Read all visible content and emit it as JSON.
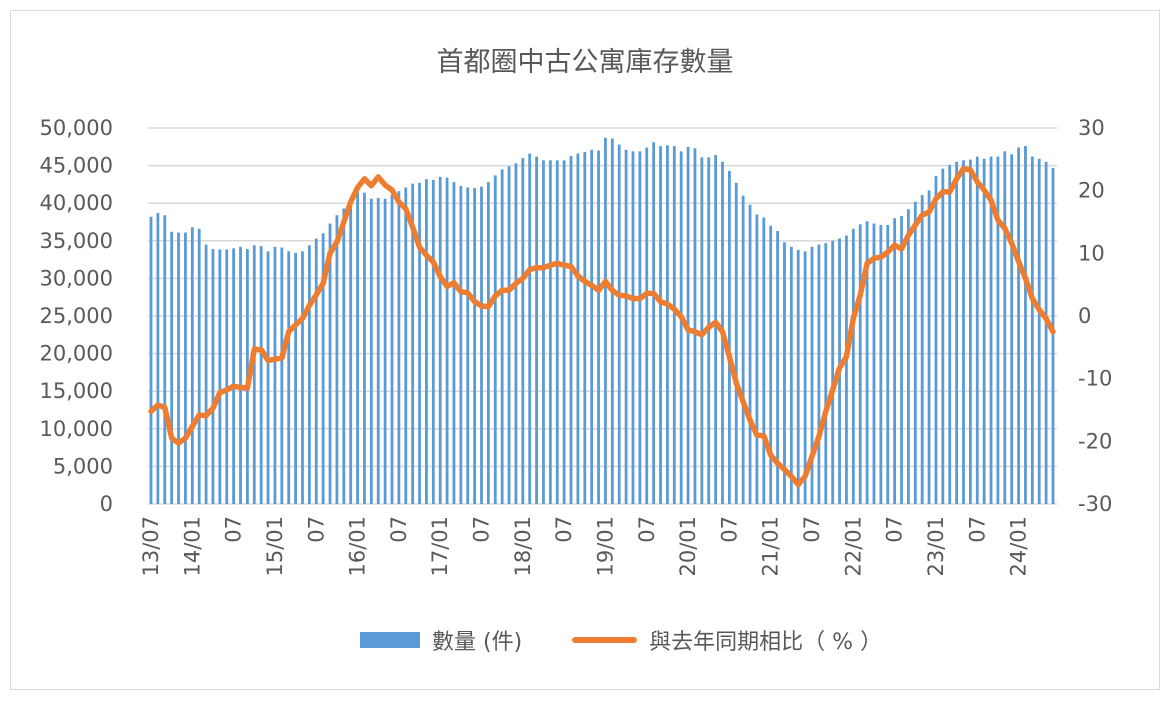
{
  "chart_data": {
    "type": "bar+line",
    "title": "首都圈中古公寓庫存數量",
    "x_start": "13/07",
    "x_end": "24/06",
    "x_tick_labels": [
      "13/07",
      "14/01",
      "07",
      "15/01",
      "07",
      "16/01",
      "07",
      "17/01",
      "07",
      "18/01",
      "07",
      "19/01",
      "07",
      "20/01",
      "07",
      "21/01",
      "07",
      "22/01",
      "07",
      "23/01",
      "07",
      "24/01"
    ],
    "y_left": {
      "min": 0,
      "max": 50000,
      "ticks": [
        "0",
        "5,000",
        "10,000",
        "15,000",
        "20,000",
        "25,000",
        "30,000",
        "35,000",
        "40,000",
        "45,000",
        "50,000"
      ]
    },
    "y_right": {
      "min": -30,
      "max": 30,
      "ticks": [
        "-30",
        "-20",
        "-10",
        "0",
        "10",
        "20",
        "30"
      ],
      "negative_color": "#e02020"
    },
    "grid": true,
    "legend_position": "bottom",
    "series": [
      {
        "name": "數量 (件)",
        "type": "bar",
        "axis": "left",
        "color": "#5b9bd5",
        "values": [
          38200,
          38700,
          38400,
          36200,
          36100,
          36100,
          36800,
          36600,
          34500,
          33900,
          33850,
          33850,
          34000,
          34200,
          33900,
          34400,
          34300,
          33600,
          34200,
          34100,
          33600,
          33400,
          33600,
          34400,
          35300,
          36000,
          37300,
          38400,
          39300,
          40400,
          41500,
          41400,
          40600,
          40700,
          40600,
          41100,
          41600,
          42100,
          42600,
          42700,
          43200,
          43100,
          43500,
          43400,
          42800,
          42300,
          42100,
          42000,
          42200,
          42800,
          43700,
          44500,
          44900,
          45300,
          46000,
          46600,
          46200,
          45700,
          45700,
          45700,
          45700,
          46300,
          46600,
          46800,
          47100,
          47000,
          48700,
          48600,
          47800,
          47100,
          46900,
          46900,
          47400,
          48100,
          47600,
          47700,
          47600,
          46900,
          47500,
          47300,
          46100,
          46100,
          46400,
          45500,
          44300,
          42700,
          41000,
          39800,
          38500,
          38100,
          37000,
          36300,
          34800,
          34200,
          33800,
          33600,
          34200,
          34500,
          34700,
          35000,
          35300,
          35700,
          36600,
          37200,
          37600,
          37300,
          37100,
          37100,
          38000,
          38300,
          39200,
          40200,
          41100,
          41700,
          43600,
          44600,
          45100,
          45500,
          45700,
          45800,
          46200,
          45900,
          46200,
          46200,
          46900,
          46500,
          47400,
          47600,
          46200,
          45900,
          45500,
          44700
        ]
      },
      {
        "name": "與去年同期相比（ % ）",
        "type": "line",
        "axis": "right",
        "color": "#ed7d31",
        "values": [
          -15.2,
          -14.2,
          -14.6,
          -19.5,
          -20.3,
          -19.5,
          -17.6,
          -15.8,
          -15.9,
          -14.7,
          -12.2,
          -11.8,
          -11.2,
          -11.4,
          -11.5,
          -5.3,
          -5.4,
          -7.1,
          -6.9,
          -6.7,
          -2.5,
          -1.4,
          -0.4,
          1.7,
          3.4,
          5.2,
          10.0,
          11.8,
          15.0,
          18.2,
          20.5,
          21.9,
          20.8,
          22.2,
          20.9,
          20.1,
          18.2,
          17.1,
          14.2,
          11.0,
          9.7,
          8.6,
          6.3,
          4.7,
          5.3,
          3.9,
          3.7,
          2.3,
          1.6,
          1.5,
          3.2,
          4.1,
          4.1,
          5.2,
          6.0,
          7.4,
          7.7,
          7.7,
          8.1,
          8.4,
          8.1,
          7.9,
          6.4,
          5.5,
          4.9,
          4.1,
          5.5,
          4.1,
          3.3,
          3.2,
          2.8,
          2.8,
          3.6,
          3.6,
          2.3,
          1.9,
          1.1,
          -0.1,
          -2.2,
          -2.5,
          -3.0,
          -1.8,
          -1.0,
          -2.5,
          -6.5,
          -10.7,
          -13.7,
          -16.6,
          -19.0,
          -19.1,
          -22.2,
          -23.5,
          -24.5,
          -25.6,
          -26.9,
          -25.6,
          -22.4,
          -19.2,
          -15.2,
          -11.8,
          -8.3,
          -6.5,
          -0.4,
          3.3,
          8.4,
          9.2,
          9.4,
          10.2,
          11.3,
          10.7,
          12.9,
          14.5,
          16.1,
          16.6,
          18.7,
          19.8,
          19.8,
          21.9,
          23.5,
          23.3,
          21.4,
          20.1,
          18.5,
          15.3,
          14.0,
          11.6,
          8.7,
          6.0,
          2.8,
          1.0,
          -0.4,
          -2.5
        ]
      }
    ]
  }
}
